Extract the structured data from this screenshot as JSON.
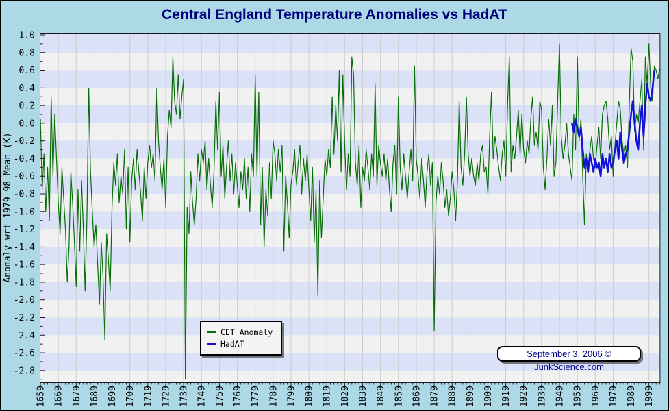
{
  "header": {
    "title": "Central England Temperature Anomalies vs HadAT"
  },
  "y_axis": {
    "title": "Anomaly wrt 1979-98 Mean (K)"
  },
  "legend": {
    "items": [
      {
        "label": "CET Anomaly",
        "color": "#076d07"
      },
      {
        "label": "HadAT",
        "color": "#1414d9"
      }
    ]
  },
  "footer_badge": {
    "text": "September 3, 2006 © JunkScience.com"
  },
  "colors": {
    "page_background": "#ADD8E6",
    "band_blue": "#dbe2f8",
    "band_gray": "#f1f1f1",
    "gridline": "#cdcdcd",
    "axis": "#1a1a1a",
    "title_text": "#00007d",
    "badge_text": "#00008B",
    "cet_line": "#076d07",
    "hadat_line": "#1414d9"
  },
  "chart_data": {
    "type": "line",
    "title": "Central England Temperature Anomalies vs HadAT",
    "xlabel": "",
    "ylabel": "Anomaly wrt 1979-98 Mean (K)",
    "xlim": [
      1659,
      2005
    ],
    "ylim": [
      -3.0,
      1.0
    ],
    "x_tick_interval": 10,
    "x_minor_tick_interval": 2,
    "y_tick_interval": 0.2,
    "y_minor_tick_interval": 0.1,
    "grid": "vertical decade gridlines with alternating horizontal shading bands every 0.2",
    "legend_position": "bottom-center-left",
    "x_tick_labels": [
      "1659",
      "1669",
      "1679",
      "1689",
      "1699",
      "1709",
      "1719",
      "1729",
      "1739",
      "1749",
      "1759",
      "1769",
      "1779",
      "1789",
      "1799",
      "1809",
      "1819",
      "1829",
      "1839",
      "1849",
      "1859",
      "1869",
      "1879",
      "1889",
      "1899",
      "1909",
      "1919",
      "1929",
      "1939",
      "1949",
      "1959",
      "1969",
      "1979",
      "1989",
      "1999"
    ],
    "y_tick_labels": [
      "1.0",
      "0.8",
      "0.6",
      "0.4",
      "0.2",
      "0.0",
      "-0.2",
      "-0.4",
      "-0.6",
      "-0.8",
      "-1.0",
      "-1.2",
      "-1.4",
      "-1.6",
      "-1.8",
      "-2.0",
      "-2.2",
      "-2.4",
      "-2.6",
      "-2.8"
    ],
    "series": [
      {
        "name": "CET Anomaly",
        "color": "#076d07",
        "stroke_width": 1.2,
        "x_start": 1659,
        "x_step": 1,
        "values": [
          0.05,
          -0.75,
          -0.35,
          -1.0,
          -0.5,
          -1.1,
          0.3,
          -0.6,
          0.1,
          -0.4,
          -0.9,
          -1.25,
          -0.5,
          -0.85,
          -1.2,
          -1.8,
          -1.4,
          -0.55,
          -0.9,
          -1.35,
          -1.85,
          -0.75,
          -1.45,
          -0.65,
          -1.2,
          -1.9,
          -1.05,
          0.4,
          -0.55,
          -1.0,
          -1.4,
          -1.15,
          -1.6,
          -2.05,
          -1.35,
          -1.75,
          -2.45,
          -1.25,
          -1.55,
          -1.9,
          -0.95,
          -0.45,
          -0.7,
          -0.35,
          -0.9,
          -0.6,
          -0.8,
          -0.3,
          -1.2,
          -0.5,
          -1.35,
          -0.65,
          -0.4,
          -0.75,
          -0.3,
          -0.55,
          -0.8,
          -1.1,
          -0.5,
          -0.85,
          -0.45,
          -0.25,
          -0.5,
          -0.35,
          -0.65,
          0.4,
          -0.2,
          -0.5,
          -0.75,
          -0.4,
          -0.95,
          -0.15,
          0.15,
          -0.05,
          0.75,
          0.25,
          0.1,
          0.55,
          0.05,
          0.3,
          0.5,
          -2.9,
          -0.95,
          -1.25,
          -0.55,
          -0.9,
          -1.15,
          -0.85,
          -0.35,
          -0.65,
          -0.3,
          -0.45,
          -0.2,
          -0.75,
          -0.4,
          -0.7,
          -0.95,
          -0.55,
          0.25,
          -0.3,
          0.35,
          -0.6,
          -0.25,
          -0.85,
          -0.5,
          -0.2,
          -0.65,
          -0.35,
          -0.8,
          -0.45,
          -0.7,
          -0.95,
          -0.55,
          -0.75,
          -0.4,
          -0.85,
          -0.5,
          -1.0,
          -0.35,
          -0.6,
          0.55,
          -0.6,
          0.35,
          -1.15,
          -0.5,
          -1.4,
          -0.75,
          -1.05,
          -0.45,
          -0.85,
          -0.2,
          -0.35,
          -0.65,
          -0.3,
          -0.55,
          -0.25,
          -1.45,
          -0.6,
          -0.9,
          -1.3,
          -0.7,
          -0.55,
          -0.3,
          -0.7,
          -0.45,
          -0.25,
          -0.8,
          -0.4,
          -0.65,
          -0.35,
          -0.75,
          -1.1,
          -0.5,
          -1.35,
          -0.75,
          -1.95,
          -0.65,
          -1.3,
          -0.85,
          -0.4,
          -0.6,
          -0.3,
          -0.5,
          0.3,
          -0.35,
          0.2,
          -0.2,
          0.6,
          -0.55,
          0.55,
          -0.25,
          -0.75,
          -0.35,
          -0.6,
          0.75,
          0.55,
          -0.45,
          -0.7,
          -0.25,
          -0.95,
          -0.5,
          -0.65,
          -0.3,
          -0.5,
          -0.75,
          -0.35,
          -0.6,
          0.45,
          -0.7,
          -0.25,
          -0.45,
          -0.6,
          -0.35,
          -0.65,
          -0.4,
          -0.75,
          -1.0,
          -0.45,
          -0.25,
          -0.8,
          0.3,
          -0.5,
          -0.75,
          -0.35,
          -0.6,
          -0.85,
          -0.55,
          -0.3,
          -0.65,
          0.65,
          -0.4,
          -0.6,
          -0.85,
          -0.4,
          -0.65,
          -0.95,
          -0.55,
          -0.35,
          -0.7,
          -0.45,
          -2.35,
          -0.9,
          -0.6,
          -0.8,
          -0.45,
          -0.65,
          -0.95,
          -0.75,
          -1.05,
          -0.85,
          -0.55,
          -0.75,
          -1.1,
          -0.65,
          0.25,
          -0.5,
          -0.7,
          -0.35,
          0.3,
          -0.35,
          -0.6,
          -0.4,
          -0.6,
          -0.7,
          -0.45,
          -0.65,
          -0.35,
          -0.25,
          -0.55,
          -0.5,
          -0.8,
          -0.15,
          0.35,
          -0.4,
          -0.15,
          -0.3,
          -0.5,
          -0.65,
          -0.35,
          -0.2,
          -0.6,
          0.2,
          0.75,
          -0.55,
          -0.25,
          -0.4,
          -0.15,
          0.15,
          -0.35,
          0.1,
          -0.3,
          -0.45,
          -0.2,
          -0.35,
          0.05,
          0.3,
          -0.25,
          -0.1,
          -0.3,
          0.25,
          0.15,
          -0.5,
          -0.75,
          -0.4,
          0.05,
          -0.25,
          0.2,
          -0.6,
          -0.45,
          0.25,
          0.9,
          -0.15,
          -0.4,
          -0.25,
          0.0,
          -0.35,
          -0.5,
          -0.65,
          0.1,
          -0.3,
          0.75,
          -0.2,
          0.05,
          -0.6,
          -1.15,
          -0.35,
          -0.55,
          -0.3,
          -0.15,
          -0.4,
          -0.5,
          -0.25,
          -0.05,
          -0.4,
          0.1,
          0.2,
          0.25,
          0.05,
          -0.3,
          -0.15,
          -0.6,
          -0.25,
          0.0,
          0.25,
          0.15,
          -0.2,
          -0.35,
          -0.25,
          -0.5,
          0.2,
          0.85,
          0.7,
          -0.1,
          0.1,
          0.0,
          0.25,
          0.5,
          -0.3,
          0.75,
          0.45,
          0.9,
          0.4,
          0.25,
          0.65,
          0.6,
          0.5,
          0.62
        ]
      },
      {
        "name": "HadAT",
        "color": "#1414d9",
        "stroke_width": 2.6,
        "x_start": 1956,
        "x_step": 1,
        "values": [
          0.0,
          -0.1,
          0.05,
          -0.05,
          -0.15,
          -0.05,
          -0.3,
          -0.5,
          -0.4,
          -0.55,
          -0.35,
          -0.45,
          -0.55,
          -0.4,
          -0.5,
          -0.45,
          -0.6,
          -0.35,
          -0.5,
          -0.4,
          -0.55,
          -0.35,
          -0.5,
          -0.45,
          -0.3,
          -0.2,
          -0.4,
          -0.1,
          -0.3,
          -0.45,
          -0.35,
          -0.3,
          -0.1,
          0.1,
          0.25,
          0.0,
          -0.2,
          -0.3,
          0.0,
          0.2,
          -0.15,
          0.2,
          0.45,
          0.3,
          0.25,
          0.4,
          0.6
        ]
      }
    ]
  }
}
